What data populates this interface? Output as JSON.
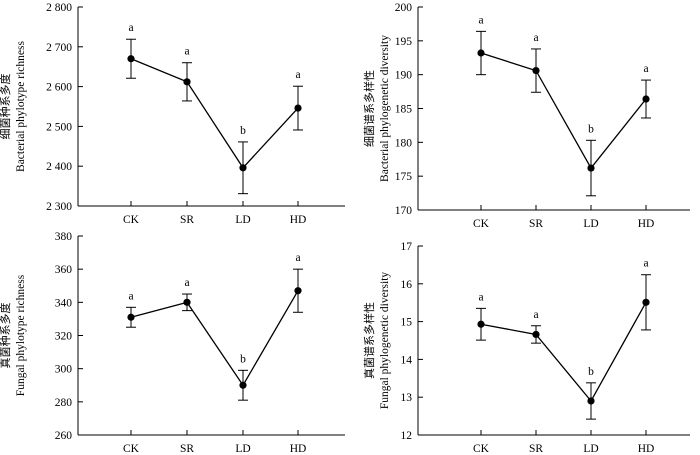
{
  "chart_data": [
    {
      "type": "line",
      "id": "bacterial-richness",
      "title": "",
      "ylabel_cn": "细菌种系多度",
      "ylabel": "Bacterial phylotype richness",
      "xlabel": "",
      "categories": [
        "CK",
        "SR",
        "LD",
        "HD"
      ],
      "values": [
        2670,
        2612,
        2396,
        2546
      ],
      "errors": [
        49,
        48,
        65,
        55
      ],
      "significance": [
        "a",
        "a",
        "b",
        "a"
      ],
      "ylim": [
        2300,
        2800
      ],
      "yticks": [
        2300,
        2400,
        2500,
        2600,
        2700,
        2800
      ],
      "ytick_labels": [
        "2 300",
        "2 400",
        "2 500",
        "2 600",
        "2 700",
        "2 800"
      ]
    },
    {
      "type": "line",
      "id": "bacterial-diversity",
      "title": "",
      "ylabel_cn": "细菌谱系多样性",
      "ylabel": "Bacterial phylogenetic diversity",
      "xlabel": "",
      "categories": [
        "CK",
        "SR",
        "LD",
        "HD"
      ],
      "values": [
        193.2,
        190.6,
        176.2,
        186.4
      ],
      "errors": [
        3.2,
        3.2,
        4.1,
        2.8
      ],
      "significance": [
        "a",
        "a",
        "b",
        "a"
      ],
      "ylim": [
        170,
        200
      ],
      "yticks": [
        170,
        175,
        180,
        185,
        190,
        195,
        200
      ],
      "ytick_labels": [
        "170",
        "175",
        "180",
        "185",
        "190",
        "195",
        "200"
      ]
    },
    {
      "type": "line",
      "id": "fungal-richness",
      "title": "",
      "ylabel_cn": "真菌种系多度",
      "ylabel": "Fungal phylotype richness",
      "xlabel": "",
      "categories": [
        "CK",
        "SR",
        "LD",
        "HD"
      ],
      "values": [
        331,
        340,
        290,
        347
      ],
      "errors": [
        6,
        5,
        9,
        13
      ],
      "significance": [
        "a",
        "a",
        "b",
        "a"
      ],
      "ylim": [
        260,
        380
      ],
      "yticks": [
        260,
        280,
        300,
        320,
        340,
        360,
        380
      ],
      "ytick_labels": [
        "260",
        "280",
        "300",
        "320",
        "340",
        "360",
        "380"
      ]
    },
    {
      "type": "line",
      "id": "fungal-diversity",
      "title": "",
      "ylabel_cn": "真菌谱系多样性",
      "ylabel": "Fungal phylogenetic diversity",
      "xlabel": "",
      "categories": [
        "CK",
        "SR",
        "LD",
        "HD"
      ],
      "values": [
        14.93,
        14.66,
        12.9,
        15.51
      ],
      "errors": [
        0.42,
        0.23,
        0.48,
        0.73
      ],
      "significance": [
        "a",
        "a",
        "b",
        "a"
      ],
      "ylim": [
        12,
        17
      ],
      "yticks": [
        12,
        13,
        14,
        15,
        16,
        17
      ],
      "ytick_labels": [
        "12",
        "13",
        "14",
        "15",
        "16",
        "17"
      ]
    }
  ]
}
